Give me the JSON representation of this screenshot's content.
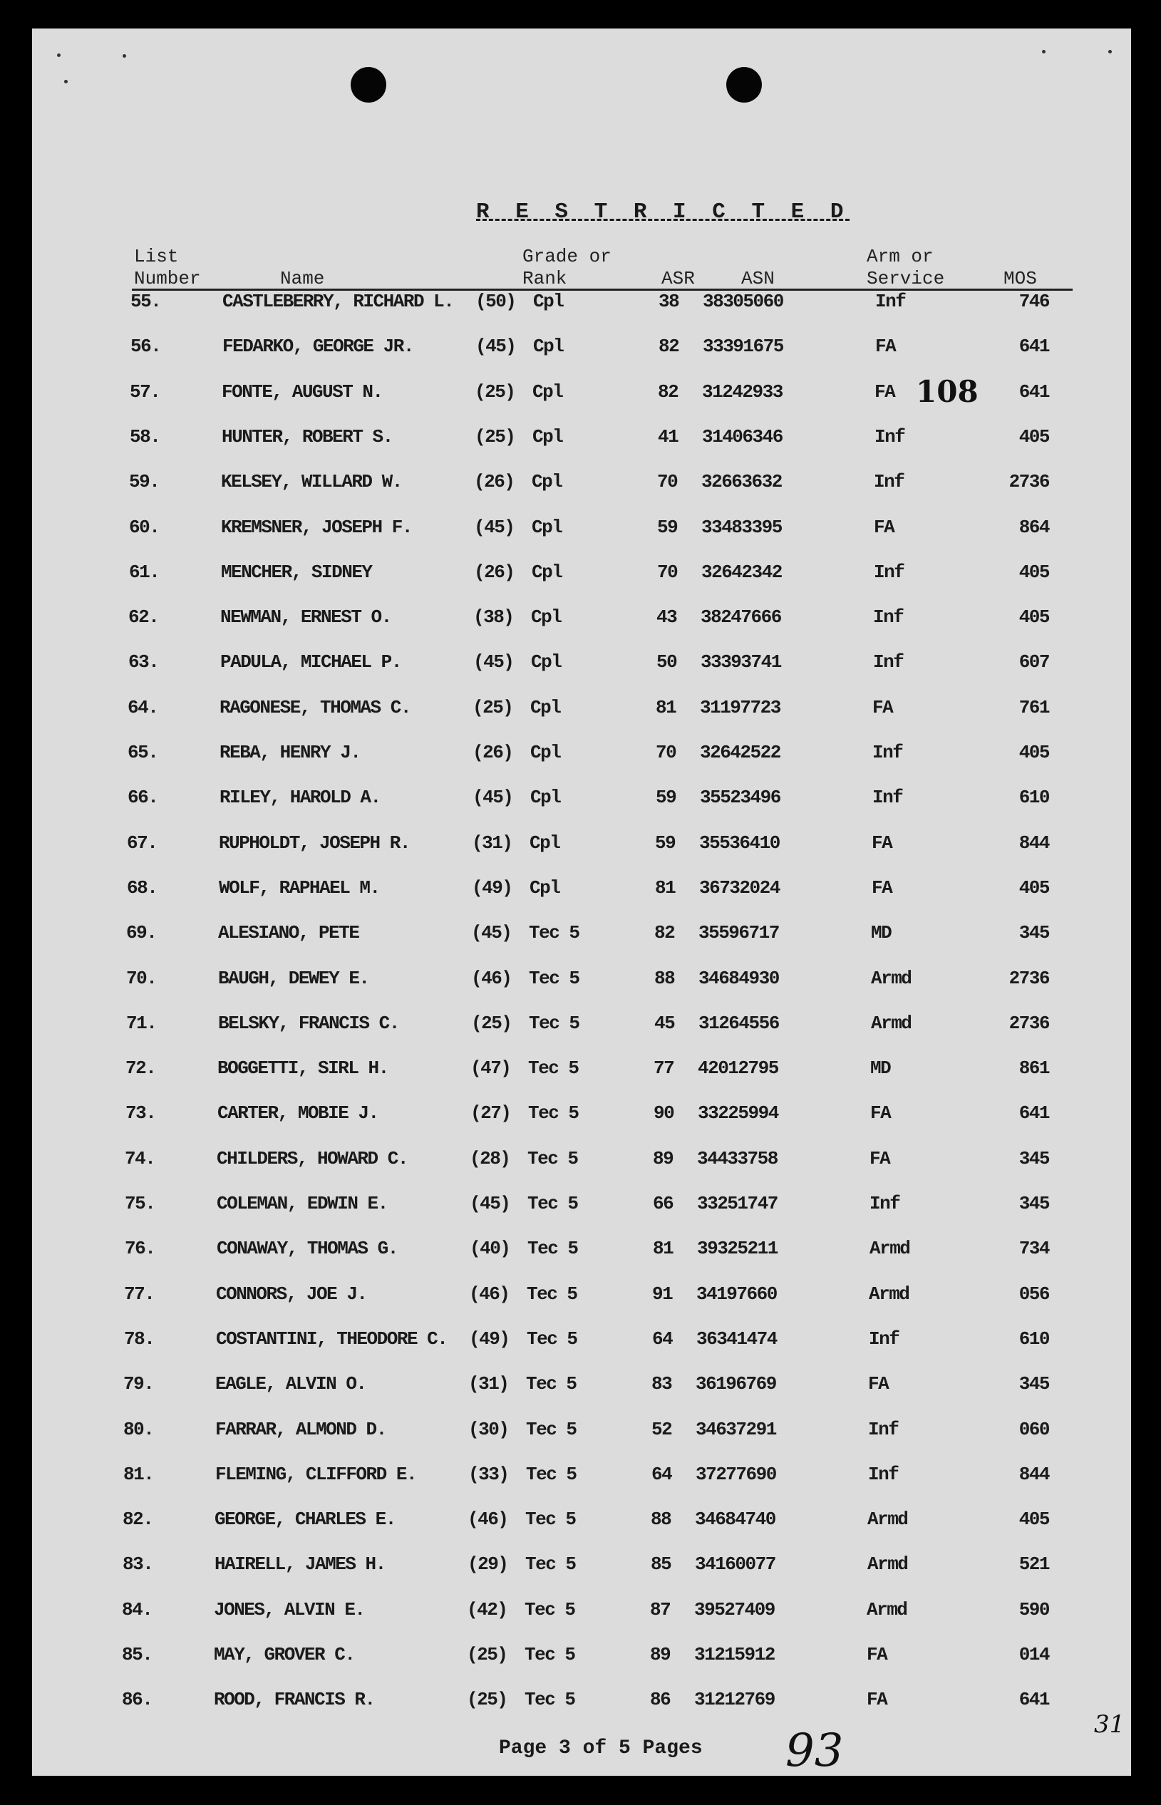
{
  "document": {
    "classification": "R E S T R I C T E D",
    "headers": {
      "list_number": [
        "List",
        "Number"
      ],
      "name": "Name",
      "grade": [
        "Grade or",
        "Rank"
      ],
      "asr": "ASR",
      "asn": "ASN",
      "arm": [
        "Arm or",
        "Service"
      ],
      "mos": "MOS"
    },
    "rows": [
      {
        "num": "55.",
        "name": "CASTLEBERRY, RICHARD L.",
        "grade": "(50)",
        "rank": "Cpl",
        "asr": "38",
        "asn": "38305060",
        "arm": "Inf",
        "mos": "746"
      },
      {
        "num": "56.",
        "name": "FEDARKO, GEORGE JR.",
        "grade": "(45)",
        "rank": "Cpl",
        "asr": "82",
        "asn": "33391675",
        "arm": "FA",
        "mos": "641"
      },
      {
        "num": "57.",
        "name": "FONTE, AUGUST N.",
        "grade": "(25)",
        "rank": "Cpl",
        "asr": "82",
        "asn": "31242933",
        "arm": "FA",
        "mos": "641"
      },
      {
        "num": "58.",
        "name": "HUNTER, ROBERT S.",
        "grade": "(25)",
        "rank": "Cpl",
        "asr": "41",
        "asn": "31406346",
        "arm": "Inf",
        "mos": "405"
      },
      {
        "num": "59.",
        "name": "KELSEY, WILLARD W.",
        "grade": "(26)",
        "rank": "Cpl",
        "asr": "70",
        "asn": "32663632",
        "arm": "Inf",
        "mos": "2736"
      },
      {
        "num": "60.",
        "name": "KREMSNER, JOSEPH F.",
        "grade": "(45)",
        "rank": "Cpl",
        "asr": "59",
        "asn": "33483395",
        "arm": "FA",
        "mos": "864"
      },
      {
        "num": "61.",
        "name": "MENCHER, SIDNEY",
        "grade": "(26)",
        "rank": "Cpl",
        "asr": "70",
        "asn": "32642342",
        "arm": "Inf",
        "mos": "405"
      },
      {
        "num": "62.",
        "name": "NEWMAN, ERNEST O.",
        "grade": "(38)",
        "rank": "Cpl",
        "asr": "43",
        "asn": "38247666",
        "arm": "Inf",
        "mos": "405"
      },
      {
        "num": "63.",
        "name": "PADULA, MICHAEL P.",
        "grade": "(45)",
        "rank": "Cpl",
        "asr": "50",
        "asn": "33393741",
        "arm": "Inf",
        "mos": "607"
      },
      {
        "num": "64.",
        "name": "RAGONESE, THOMAS C.",
        "grade": "(25)",
        "rank": "Cpl",
        "asr": "81",
        "asn": "31197723",
        "arm": "FA",
        "mos": "761"
      },
      {
        "num": "65.",
        "name": "REBA, HENRY J.",
        "grade": "(26)",
        "rank": "Cpl",
        "asr": "70",
        "asn": "32642522",
        "arm": "Inf",
        "mos": "405"
      },
      {
        "num": "66.",
        "name": "RILEY, HAROLD A.",
        "grade": "(45)",
        "rank": "Cpl",
        "asr": "59",
        "asn": "35523496",
        "arm": "Inf",
        "mos": "610"
      },
      {
        "num": "67.",
        "name": "RUPHOLDT, JOSEPH R.",
        "grade": "(31)",
        "rank": "Cpl",
        "asr": "59",
        "asn": "35536410",
        "arm": "FA",
        "mos": "844"
      },
      {
        "num": "68.",
        "name": "WOLF, RAPHAEL M.",
        "grade": "(49)",
        "rank": "Cpl",
        "asr": "81",
        "asn": "36732024",
        "arm": "FA",
        "mos": "405"
      },
      {
        "num": "69.",
        "name": "ALESIANO, PETE",
        "grade": "(45)",
        "rank": "Tec 5",
        "asr": "82",
        "asn": "35596717",
        "arm": "MD",
        "mos": "345"
      },
      {
        "num": "70.",
        "name": "BAUGH, DEWEY E.",
        "grade": "(46)",
        "rank": "Tec 5",
        "asr": "88",
        "asn": "34684930",
        "arm": "Armd",
        "mos": "2736"
      },
      {
        "num": "71.",
        "name": "BELSKY, FRANCIS C.",
        "grade": "(25)",
        "rank": "Tec 5",
        "asr": "45",
        "asn": "31264556",
        "arm": "Armd",
        "mos": "2736"
      },
      {
        "num": "72.",
        "name": "BOGGETTI, SIRL H.",
        "grade": "(47)",
        "rank": "Tec 5",
        "asr": "77",
        "asn": "42012795",
        "arm": "MD",
        "mos": "861"
      },
      {
        "num": "73.",
        "name": "CARTER, MOBIE J.",
        "grade": "(27)",
        "rank": "Tec 5",
        "asr": "90",
        "asn": "33225994",
        "arm": "FA",
        "mos": "641"
      },
      {
        "num": "74.",
        "name": "CHILDERS, HOWARD C.",
        "grade": "(28)",
        "rank": "Tec 5",
        "asr": "89",
        "asn": "34433758",
        "arm": "FA",
        "mos": "345"
      },
      {
        "num": "75.",
        "name": "COLEMAN, EDWIN E.",
        "grade": "(45)",
        "rank": "Tec 5",
        "asr": "66",
        "asn": "33251747",
        "arm": "Inf",
        "mos": "345"
      },
      {
        "num": "76.",
        "name": "CONAWAY, THOMAS G.",
        "grade": "(40)",
        "rank": "Tec 5",
        "asr": "81",
        "asn": "39325211",
        "arm": "Armd",
        "mos": "734"
      },
      {
        "num": "77.",
        "name": "CONNORS, JOE J.",
        "grade": "(46)",
        "rank": "Tec 5",
        "asr": "91",
        "asn": "34197660",
        "arm": "Armd",
        "mos": "056"
      },
      {
        "num": "78.",
        "name": "COSTANTINI, THEODORE C.",
        "grade": "(49)",
        "rank": "Tec 5",
        "asr": "64",
        "asn": "36341474",
        "arm": "Inf",
        "mos": "610"
      },
      {
        "num": "79.",
        "name": "EAGLE, ALVIN O.",
        "grade": "(31)",
        "rank": "Tec 5",
        "asr": "83",
        "asn": "36196769",
        "arm": "FA",
        "mos": "345"
      },
      {
        "num": "80.",
        "name": "FARRAR, ALMOND D.",
        "grade": "(30)",
        "rank": "Tec 5",
        "asr": "52",
        "asn": "34637291",
        "arm": "Inf",
        "mos": "060"
      },
      {
        "num": "81.",
        "name": "FLEMING, CLIFFORD E.",
        "grade": "(33)",
        "rank": "Tec 5",
        "asr": "64",
        "asn": "37277690",
        "arm": "Inf",
        "mos": "844"
      },
      {
        "num": "82.",
        "name": "GEORGE, CHARLES E.",
        "grade": "(46)",
        "rank": "Tec 5",
        "asr": "88",
        "asn": "34684740",
        "arm": "Armd",
        "mos": "405"
      },
      {
        "num": "83.",
        "name": "HAIRELL, JAMES H.",
        "grade": "(29)",
        "rank": "Tec 5",
        "asr": "85",
        "asn": "34160077",
        "arm": "Armd",
        "mos": "521"
      },
      {
        "num": "84.",
        "name": "JONES, ALVIN E.",
        "grade": "(42)",
        "rank": "Tec 5",
        "asr": "87",
        "asn": "39527409",
        "arm": "Armd",
        "mos": "590"
      },
      {
        "num": "85.",
        "name": "MAY, GROVER C.",
        "grade": "(25)",
        "rank": "Tec 5",
        "asr": "89",
        "asn": "31215912",
        "arm": "FA",
        "mos": "014"
      },
      {
        "num": "86.",
        "name": "ROOD, FRANCIS R.",
        "grade": "(25)",
        "rank": "Tec 5",
        "asr": "86",
        "asn": "31212769",
        "arm": "FA",
        "mos": "641"
      }
    ],
    "stamp": "108",
    "footer": "Page 3 of 5 Pages",
    "handwritten_page": "93",
    "handwritten_margin": "31"
  }
}
